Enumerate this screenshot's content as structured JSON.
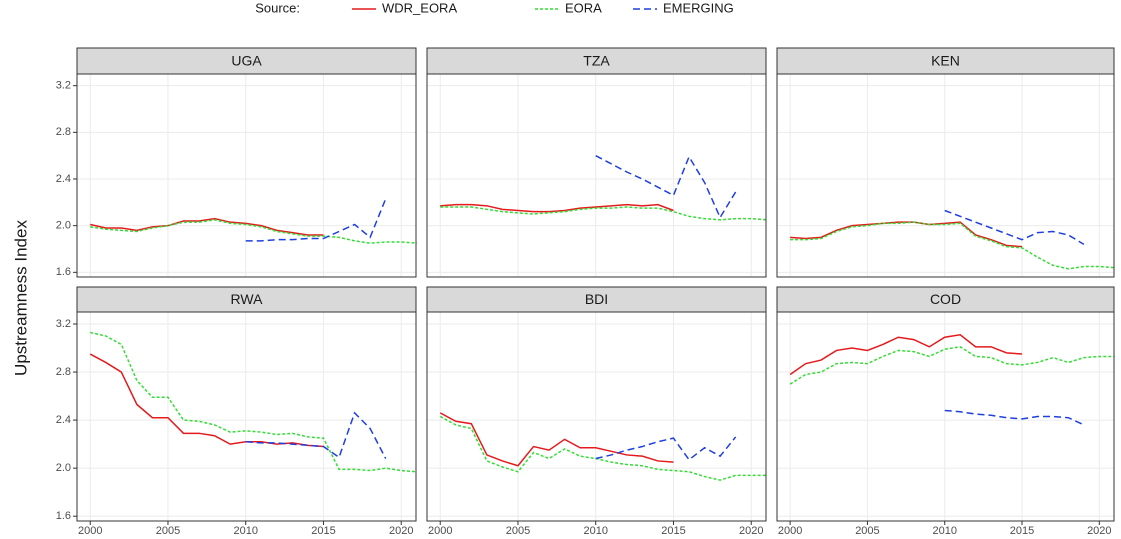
{
  "legend_title": "Source:",
  "y_label": "Upstreamness Index",
  "chart_data": [
    {
      "type": "line",
      "title": "UGA",
      "x": [
        2000,
        2001,
        2002,
        2003,
        2004,
        2005,
        2006,
        2007,
        2008,
        2009,
        2010,
        2011,
        2012,
        2013,
        2014,
        2015,
        2016,
        2017,
        2018,
        2019,
        2020,
        2021
      ],
      "xlim": [
        1999.15,
        2020.95
      ],
      "xticks": [
        2000,
        2005,
        2010,
        2015,
        2020
      ],
      "ylim": [
        1.56,
        3.3
      ],
      "yticks": [
        1.6,
        {
          "value": 2,
          "label": "2.0"
        },
        2.4,
        2.8,
        3.2
      ],
      "grid": true,
      "series": [
        {
          "name": "WDR_EORA",
          "color": "#e41a1c",
          "dash": "solid",
          "values": [
            2.01,
            1.98,
            1.98,
            1.96,
            1.99,
            2.0,
            2.04,
            2.04,
            2.06,
            2.03,
            2.02,
            2.0,
            1.96,
            1.94,
            1.92,
            1.92,
            null,
            null,
            null,
            null,
            null,
            null
          ]
        },
        {
          "name": "EORA",
          "color": "#33dd33",
          "dash": "dotted",
          "values": [
            1.99,
            1.97,
            1.96,
            1.95,
            1.98,
            2.0,
            2.03,
            2.03,
            2.05,
            2.02,
            2.01,
            1.99,
            1.95,
            1.93,
            1.91,
            1.91,
            1.9,
            1.87,
            1.85,
            1.86,
            1.86,
            1.85
          ]
        },
        {
          "name": "EMERGING",
          "color": "#1f3fe0",
          "dash": "dashed",
          "values": [
            null,
            null,
            null,
            null,
            null,
            null,
            null,
            null,
            null,
            null,
            1.87,
            1.87,
            1.88,
            1.88,
            1.89,
            1.89,
            1.95,
            2.01,
            1.9,
            2.23,
            null,
            null
          ]
        }
      ]
    },
    {
      "type": "line",
      "title": "TZA",
      "x": [
        2000,
        2001,
        2002,
        2003,
        2004,
        2005,
        2006,
        2007,
        2008,
        2009,
        2010,
        2011,
        2012,
        2013,
        2014,
        2015,
        2016,
        2017,
        2018,
        2019,
        2020,
        2021
      ],
      "xlim": [
        1999.15,
        2020.95
      ],
      "xticks": [
        2000,
        2005,
        2010,
        2015,
        2020
      ],
      "ylim": [
        1.56,
        3.3
      ],
      "yticks": [
        1.6,
        {
          "value": 2,
          "label": "2.0"
        },
        2.4,
        2.8,
        3.2
      ],
      "grid": true,
      "series": [
        {
          "name": "WDR_EORA",
          "color": "#e41a1c",
          "dash": "solid",
          "values": [
            2.17,
            2.18,
            2.18,
            2.17,
            2.14,
            2.13,
            2.12,
            2.12,
            2.13,
            2.15,
            2.16,
            2.17,
            2.18,
            2.17,
            2.18,
            2.13,
            null,
            null,
            null,
            null,
            null,
            null
          ]
        },
        {
          "name": "EORA",
          "color": "#33dd33",
          "dash": "dotted",
          "values": [
            2.16,
            2.16,
            2.16,
            2.14,
            2.12,
            2.11,
            2.1,
            2.11,
            2.12,
            2.14,
            2.15,
            2.15,
            2.16,
            2.15,
            2.15,
            2.12,
            2.08,
            2.06,
            2.05,
            2.06,
            2.06,
            2.05
          ]
        },
        {
          "name": "EMERGING",
          "color": "#1f3fe0",
          "dash": "dashed",
          "values": [
            null,
            null,
            null,
            null,
            null,
            null,
            null,
            null,
            null,
            null,
            2.6,
            2.53,
            2.46,
            2.4,
            2.33,
            2.26,
            2.59,
            2.37,
            2.07,
            2.29,
            null,
            null
          ]
        }
      ]
    },
    {
      "type": "line",
      "title": "KEN",
      "x": [
        2000,
        2001,
        2002,
        2003,
        2004,
        2005,
        2006,
        2007,
        2008,
        2009,
        2010,
        2011,
        2012,
        2013,
        2014,
        2015,
        2016,
        2017,
        2018,
        2019,
        2020,
        2021
      ],
      "xlim": [
        1999.15,
        2020.95
      ],
      "xticks": [
        2000,
        2005,
        2010,
        2015,
        2020
      ],
      "ylim": [
        1.56,
        3.3
      ],
      "yticks": [
        1.6,
        {
          "value": 2,
          "label": "2.0"
        },
        2.4,
        2.8,
        3.2
      ],
      "grid": true,
      "series": [
        {
          "name": "WDR_EORA",
          "color": "#e41a1c",
          "dash": "solid",
          "values": [
            1.9,
            1.89,
            1.9,
            1.96,
            2.0,
            2.01,
            2.02,
            2.03,
            2.03,
            2.01,
            2.02,
            2.03,
            1.92,
            1.88,
            1.83,
            1.82,
            null,
            null,
            null,
            null,
            null,
            null
          ]
        },
        {
          "name": "EORA",
          "color": "#33dd33",
          "dash": "dotted",
          "values": [
            1.88,
            1.88,
            1.89,
            1.95,
            1.99,
            2.0,
            2.02,
            2.02,
            2.03,
            2.01,
            2.01,
            2.02,
            1.91,
            1.87,
            1.82,
            1.81,
            1.73,
            1.66,
            1.63,
            1.65,
            1.65,
            1.64
          ]
        },
        {
          "name": "EMERGING",
          "color": "#1f3fe0",
          "dash": "dashed",
          "values": [
            null,
            null,
            null,
            null,
            null,
            null,
            null,
            null,
            null,
            null,
            2.13,
            2.08,
            2.03,
            1.98,
            1.93,
            1.88,
            1.94,
            1.95,
            1.92,
            1.84,
            null,
            null
          ]
        }
      ]
    },
    {
      "type": "line",
      "title": "RWA",
      "x": [
        2000,
        2001,
        2002,
        2003,
        2004,
        2005,
        2006,
        2007,
        2008,
        2009,
        2010,
        2011,
        2012,
        2013,
        2014,
        2015,
        2016,
        2017,
        2018,
        2019,
        2020,
        2021
      ],
      "xlim": [
        1999.15,
        2020.95
      ],
      "xticks": [
        2000,
        2005,
        2010,
        2015,
        2020
      ],
      "ylim": [
        1.56,
        3.3
      ],
      "yticks": [
        1.6,
        {
          "value": 2,
          "label": "2.0"
        },
        2.4,
        2.8,
        3.2
      ],
      "grid": true,
      "series": [
        {
          "name": "WDR_EORA",
          "color": "#e41a1c",
          "dash": "solid",
          "values": [
            2.95,
            2.88,
            2.8,
            2.53,
            2.42,
            2.42,
            2.29,
            2.29,
            2.27,
            2.2,
            2.22,
            2.22,
            2.2,
            2.21,
            2.19,
            2.18,
            null,
            null,
            null,
            null,
            null,
            null
          ]
        },
        {
          "name": "EORA",
          "color": "#33dd33",
          "dash": "dotted",
          "values": [
            3.13,
            3.1,
            3.03,
            2.73,
            2.59,
            2.59,
            2.4,
            2.39,
            2.36,
            2.3,
            2.31,
            2.3,
            2.28,
            2.29,
            2.26,
            2.25,
            1.99,
            1.99,
            1.98,
            2.0,
            1.98,
            1.97
          ]
        },
        {
          "name": "EMERGING",
          "color": "#1f3fe0",
          "dash": "dashed",
          "values": [
            null,
            null,
            null,
            null,
            null,
            null,
            null,
            null,
            null,
            null,
            2.22,
            2.21,
            2.21,
            2.2,
            2.19,
            2.18,
            2.09,
            2.46,
            2.33,
            2.08,
            null,
            null
          ]
        }
      ]
    },
    {
      "type": "line",
      "title": "BDI",
      "x": [
        2000,
        2001,
        2002,
        2003,
        2004,
        2005,
        2006,
        2007,
        2008,
        2009,
        2010,
        2011,
        2012,
        2013,
        2014,
        2015,
        2016,
        2017,
        2018,
        2019,
        2020,
        2021
      ],
      "xlim": [
        1999.15,
        2020.95
      ],
      "xticks": [
        2000,
        2005,
        2010,
        2015,
        2020
      ],
      "ylim": [
        1.56,
        3.3
      ],
      "yticks": [
        1.6,
        {
          "value": 2,
          "label": "2.0"
        },
        2.4,
        2.8,
        3.2
      ],
      "grid": true,
      "series": [
        {
          "name": "WDR_EORA",
          "color": "#e41a1c",
          "dash": "solid",
          "values": [
            2.46,
            2.39,
            2.37,
            2.11,
            2.06,
            2.02,
            2.18,
            2.15,
            2.24,
            2.17,
            2.17,
            2.14,
            2.11,
            2.1,
            2.06,
            2.05,
            null,
            null,
            null,
            null,
            null,
            null
          ]
        },
        {
          "name": "EORA",
          "color": "#33dd33",
          "dash": "dotted",
          "values": [
            2.43,
            2.36,
            2.33,
            2.06,
            2.01,
            1.97,
            2.13,
            2.08,
            2.16,
            2.1,
            2.08,
            2.05,
            2.03,
            2.02,
            1.99,
            1.98,
            1.97,
            1.93,
            1.9,
            1.94,
            1.94,
            1.94
          ]
        },
        {
          "name": "EMERGING",
          "color": "#1f3fe0",
          "dash": "dashed",
          "values": [
            null,
            null,
            null,
            null,
            null,
            null,
            null,
            null,
            null,
            null,
            2.08,
            2.11,
            2.15,
            2.18,
            2.22,
            2.25,
            2.07,
            2.17,
            2.1,
            2.26,
            null,
            null
          ]
        }
      ]
    },
    {
      "type": "line",
      "title": "COD",
      "x": [
        2000,
        2001,
        2002,
        2003,
        2004,
        2005,
        2006,
        2007,
        2008,
        2009,
        2010,
        2011,
        2012,
        2013,
        2014,
        2015,
        2016,
        2017,
        2018,
        2019,
        2020,
        2021
      ],
      "xlim": [
        1999.15,
        2020.95
      ],
      "xticks": [
        2000,
        2005,
        2010,
        2015,
        2020
      ],
      "ylim": [
        1.56,
        3.3
      ],
      "yticks": [
        1.6,
        {
          "value": 2,
          "label": "2.0"
        },
        2.4,
        2.8,
        3.2
      ],
      "grid": true,
      "series": [
        {
          "name": "WDR_EORA",
          "color": "#e41a1c",
          "dash": "solid",
          "values": [
            2.78,
            2.87,
            2.9,
            2.98,
            3.0,
            2.98,
            3.03,
            3.09,
            3.07,
            3.01,
            3.09,
            3.11,
            3.01,
            3.01,
            2.96,
            2.95,
            null,
            null,
            null,
            null,
            null,
            null
          ]
        },
        {
          "name": "EORA",
          "color": "#33dd33",
          "dash": "dotted",
          "values": [
            2.7,
            2.78,
            2.8,
            2.87,
            2.88,
            2.87,
            2.93,
            2.98,
            2.97,
            2.93,
            2.99,
            3.01,
            2.93,
            2.92,
            2.87,
            2.86,
            2.88,
            2.92,
            2.88,
            2.92,
            2.93,
            2.93
          ]
        },
        {
          "name": "EMERGING",
          "color": "#1f3fe0",
          "dash": "dashed",
          "values": [
            null,
            null,
            null,
            null,
            null,
            null,
            null,
            null,
            null,
            null,
            2.48,
            2.47,
            2.45,
            2.44,
            2.42,
            2.41,
            2.43,
            2.43,
            2.42,
            2.36,
            null,
            null
          ]
        }
      ]
    }
  ]
}
